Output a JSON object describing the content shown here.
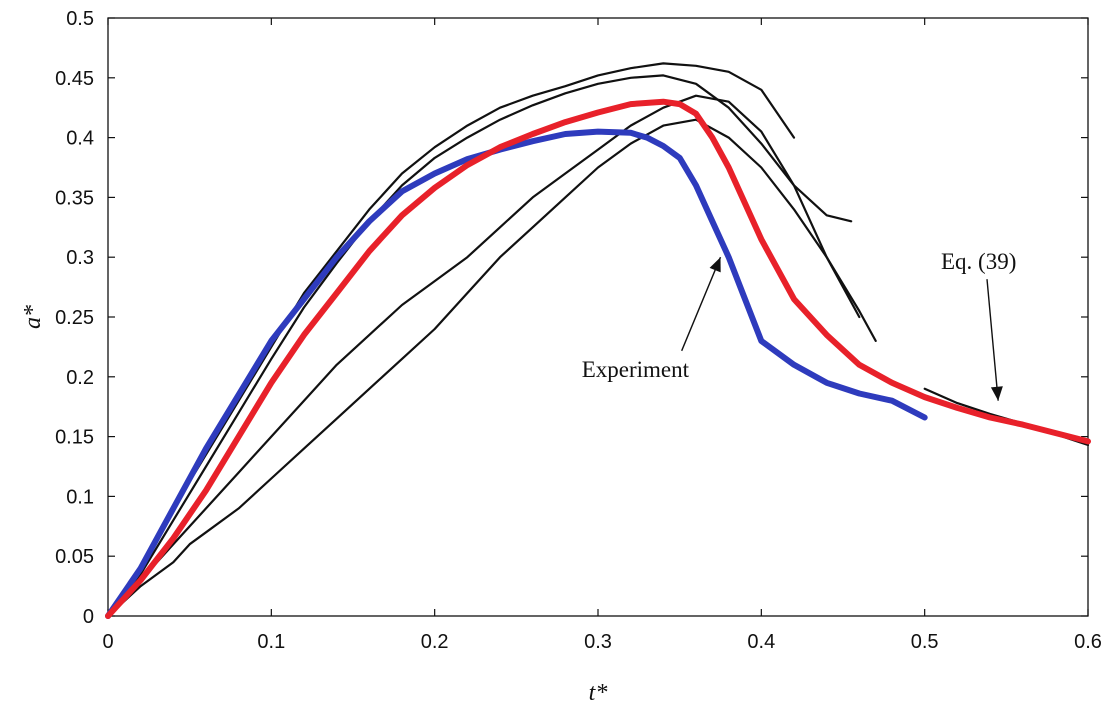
{
  "chart_data": {
    "type": "line",
    "title": "",
    "xlabel": "t*",
    "ylabel": "a*",
    "xlim": [
      0,
      0.6
    ],
    "ylim": [
      0,
      0.5
    ],
    "xticks": [
      "0",
      "0.1",
      "0.2",
      "0.3",
      "0.4",
      "0.5",
      "0.6"
    ],
    "yticks": [
      "0",
      "0.05",
      "0.1",
      "0.15",
      "0.2",
      "0.25",
      "0.3",
      "0.35",
      "0.4",
      "0.45",
      "0.5"
    ],
    "grid": false,
    "legend": "none",
    "annotations": [
      {
        "text": "Experiment",
        "x": 0.29,
        "y": 0.2,
        "arrow_to": [
          0.375,
          0.3
        ]
      },
      {
        "text": "Eq. (39)",
        "x": 0.51,
        "y": 0.29,
        "arrow_to": [
          0.545,
          0.18
        ]
      }
    ],
    "series": [
      {
        "color": "#e8212a",
        "x": [
          0,
          0.02,
          0.04,
          0.06,
          0.08,
          0.1,
          0.12,
          0.14,
          0.16,
          0.18,
          0.2,
          0.22,
          0.24,
          0.26,
          0.28,
          0.3,
          0.32,
          0.34,
          0.35,
          0.36,
          0.37,
          0.38,
          0.39,
          0.4,
          0.42,
          0.44,
          0.46,
          0.48,
          0.5,
          0.52,
          0.54,
          0.56,
          0.58,
          0.6
        ],
        "y": [
          0,
          0.03,
          0.065,
          0.105,
          0.15,
          0.195,
          0.235,
          0.27,
          0.305,
          0.335,
          0.358,
          0.377,
          0.392,
          0.403,
          0.413,
          0.421,
          0.428,
          0.43,
          0.428,
          0.42,
          0.4,
          0.375,
          0.345,
          0.315,
          0.265,
          0.235,
          0.21,
          0.195,
          0.183,
          0.174,
          0.166,
          0.16,
          0.153,
          0.146
        ]
      },
      {
        "color": "#2e3bbd",
        "x": [
          0,
          0.02,
          0.04,
          0.06,
          0.08,
          0.1,
          0.12,
          0.14,
          0.16,
          0.18,
          0.2,
          0.22,
          0.24,
          0.26,
          0.28,
          0.3,
          0.32,
          0.33,
          0.34,
          0.35,
          0.36,
          0.37,
          0.38,
          0.39,
          0.4,
          0.42,
          0.44,
          0.46,
          0.48,
          0.5
        ],
        "y": [
          0,
          0.04,
          0.09,
          0.14,
          0.185,
          0.23,
          0.265,
          0.3,
          0.33,
          0.355,
          0.37,
          0.382,
          0.39,
          0.397,
          0.403,
          0.405,
          0.404,
          0.4,
          0.393,
          0.383,
          0.36,
          0.33,
          0.3,
          0.265,
          0.23,
          0.21,
          0.195,
          0.186,
          0.18,
          0.166
        ]
      },
      {
        "color": "#111111",
        "x": [
          0,
          0.02,
          0.04,
          0.06,
          0.08,
          0.1,
          0.12,
          0.14,
          0.16,
          0.18,
          0.2,
          0.22,
          0.24,
          0.26,
          0.28,
          0.3,
          0.32,
          0.34,
          0.36,
          0.38,
          0.4,
          0.42
        ],
        "y": [
          0,
          0.04,
          0.09,
          0.135,
          0.18,
          0.225,
          0.27,
          0.305,
          0.34,
          0.37,
          0.392,
          0.41,
          0.425,
          0.435,
          0.443,
          0.452,
          0.458,
          0.462,
          0.46,
          0.455,
          0.44,
          0.4
        ]
      },
      {
        "color": "#111111",
        "x": [
          0,
          0.02,
          0.04,
          0.06,
          0.08,
          0.1,
          0.12,
          0.14,
          0.16,
          0.18,
          0.2,
          0.22,
          0.24,
          0.26,
          0.28,
          0.3,
          0.32,
          0.34,
          0.36,
          0.38,
          0.4,
          0.42,
          0.44,
          0.455
        ],
        "y": [
          0,
          0.035,
          0.08,
          0.125,
          0.17,
          0.215,
          0.258,
          0.295,
          0.33,
          0.36,
          0.383,
          0.4,
          0.415,
          0.427,
          0.437,
          0.445,
          0.45,
          0.452,
          0.445,
          0.425,
          0.395,
          0.36,
          0.335,
          0.33
        ]
      },
      {
        "color": "#111111",
        "x": [
          0,
          0.02,
          0.04,
          0.05,
          0.06,
          0.08,
          0.1,
          0.12,
          0.14,
          0.16,
          0.18,
          0.2,
          0.22,
          0.24,
          0.26,
          0.28,
          0.3,
          0.32,
          0.34,
          0.36,
          0.38,
          0.4,
          0.42,
          0.44,
          0.46,
          0.47
        ],
        "y": [
          0,
          0.025,
          0.045,
          0.06,
          0.07,
          0.09,
          0.115,
          0.14,
          0.165,
          0.19,
          0.215,
          0.24,
          0.27,
          0.3,
          0.325,
          0.35,
          0.375,
          0.395,
          0.41,
          0.415,
          0.4,
          0.375,
          0.34,
          0.3,
          0.255,
          0.23
        ]
      },
      {
        "color": "#111111",
        "x": [
          0,
          0.02,
          0.04,
          0.06,
          0.08,
          0.1,
          0.12,
          0.14,
          0.16,
          0.18,
          0.2,
          0.22,
          0.24,
          0.26,
          0.28,
          0.3,
          0.32,
          0.34,
          0.36,
          0.38,
          0.4,
          0.42,
          0.44,
          0.46
        ],
        "y": [
          0,
          0.03,
          0.06,
          0.09,
          0.12,
          0.15,
          0.18,
          0.21,
          0.235,
          0.26,
          0.28,
          0.3,
          0.325,
          0.35,
          0.37,
          0.39,
          0.41,
          0.425,
          0.435,
          0.43,
          0.405,
          0.36,
          0.3,
          0.25
        ]
      },
      {
        "color": "#111111",
        "x": [
          0.5,
          0.52,
          0.54,
          0.56,
          0.58,
          0.6
        ],
        "y": [
          0.19,
          0.178,
          0.169,
          0.161,
          0.152,
          0.143
        ]
      }
    ]
  }
}
